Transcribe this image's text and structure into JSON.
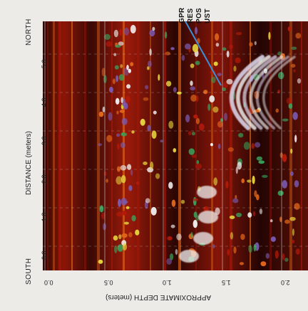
{
  "labels": {
    "north": "NORTH",
    "south": "SOUTH",
    "distance_axis": "DISTANCE (meters)",
    "depth_axis": "APPROXIMATE DEPTH (meters)"
  },
  "distance_ticks": [
    "5.0",
    "4.0",
    "3.0",
    "2.0",
    "1.0",
    "0.0"
  ],
  "depth_ticks": [
    "0.0",
    "0.5",
    "1.0",
    "1.5",
    "2.0"
  ],
  "annotation_lines": [
    "GPR",
    "RES",
    "POS",
    "UST"
  ],
  "colors": {
    "background": "#ecebe7",
    "radar_dark": "#1a0503",
    "radar_red": "#b51a0a",
    "radar_orange": "#e0661a",
    "radar_yellow": "#e6d23c",
    "radar_green": "#3aa05a",
    "radar_purple": "#7a5ab0",
    "radar_white": "#f2f2f2",
    "pointer": "#3a8fd8"
  }
}
